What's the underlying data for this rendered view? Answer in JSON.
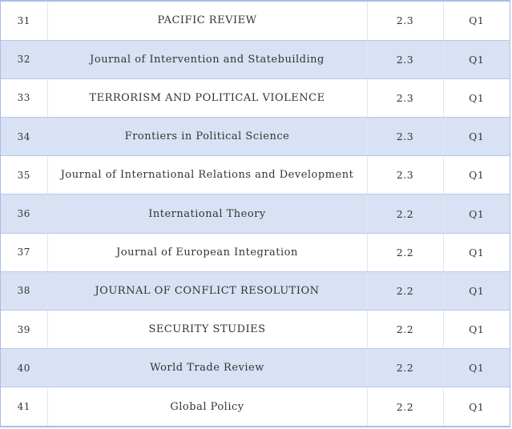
{
  "table": {
    "rows": [
      {
        "rank": "31",
        "journal": "PACIFIC REVIEW",
        "impact_factor": "2.3",
        "quartile": "Q1"
      },
      {
        "rank": "32",
        "journal": "Journal of Intervention and Statebuilding",
        "impact_factor": "2.3",
        "quartile": "Q1"
      },
      {
        "rank": "33",
        "journal": "TERRORISM AND POLITICAL VIOLENCE",
        "impact_factor": "2.3",
        "quartile": "Q1"
      },
      {
        "rank": "34",
        "journal": "Frontiers in Political Science",
        "impact_factor": "2.3",
        "quartile": "Q1"
      },
      {
        "rank": "35",
        "journal": "Journal of International Relations and Development",
        "impact_factor": "2.3",
        "quartile": "Q1"
      },
      {
        "rank": "36",
        "journal": "International Theory",
        "impact_factor": "2.2",
        "quartile": "Q1"
      },
      {
        "rank": "37",
        "journal": "Journal of European Integration",
        "impact_factor": "2.2",
        "quartile": "Q1"
      },
      {
        "rank": "38",
        "journal": "JOURNAL OF CONFLICT RESOLUTION",
        "impact_factor": "2.2",
        "quartile": "Q1"
      },
      {
        "rank": "39",
        "journal": "SECURITY STUDIES",
        "impact_factor": "2.2",
        "quartile": "Q1"
      },
      {
        "rank": "40",
        "journal": "World Trade Review",
        "impact_factor": "2.2",
        "quartile": "Q1"
      },
      {
        "rank": "41",
        "journal": "Global Policy",
        "impact_factor": "2.2",
        "quartile": "Q1"
      }
    ]
  },
  "colors": {
    "row_shade": "#d9e1f4",
    "border": "#a9bde6",
    "text": "#333333"
  }
}
